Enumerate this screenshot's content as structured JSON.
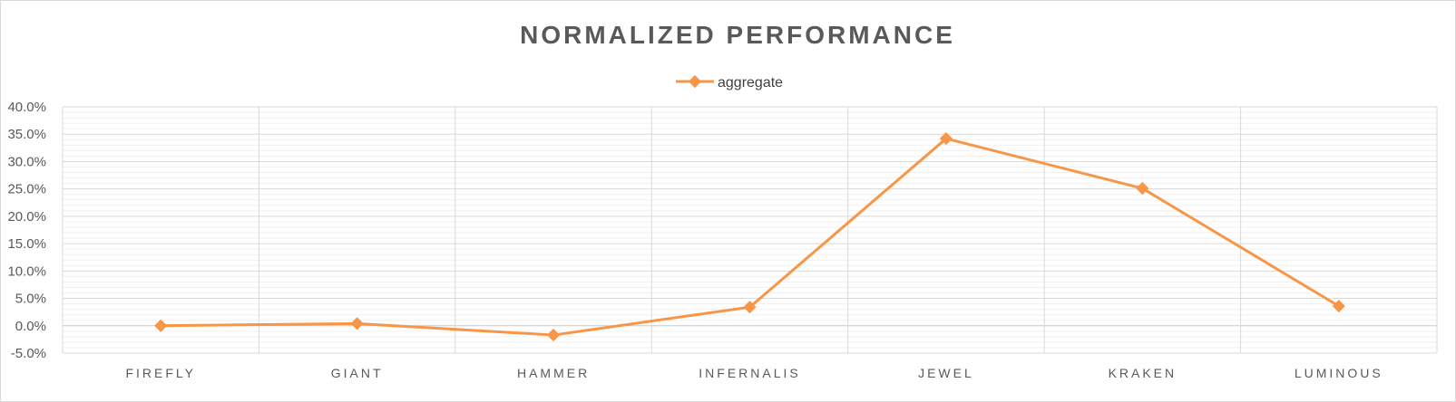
{
  "chart_data": {
    "type": "line",
    "title": "NORMALIZED PERFORMANCE",
    "xlabel": "",
    "ylabel": "",
    "categories": [
      "FIREFLY",
      "GIANT",
      "HAMMER",
      "INFERNALIS",
      "JEWEL",
      "KRAKEN",
      "LUMINOUS"
    ],
    "series": [
      {
        "name": "aggregate",
        "values": [
          0.0,
          0.4,
          -1.7,
          3.4,
          34.2,
          25.1,
          3.6
        ],
        "color": "#f79646",
        "marker": "diamond"
      }
    ],
    "ylim": [
      -5,
      40
    ],
    "yticks": [
      -5,
      0,
      5,
      10,
      15,
      20,
      25,
      30,
      35,
      40
    ],
    "ytick_labels": [
      "-5.0%",
      "0.0%",
      "5.0%",
      "10.0%",
      "15.0%",
      "20.0%",
      "25.0%",
      "30.0%",
      "35.0%",
      "40.0%"
    ],
    "y_format": "percent",
    "grid": {
      "major": true,
      "minor": true,
      "vertical_category_lines": true
    },
    "legend": {
      "position": "top"
    }
  }
}
